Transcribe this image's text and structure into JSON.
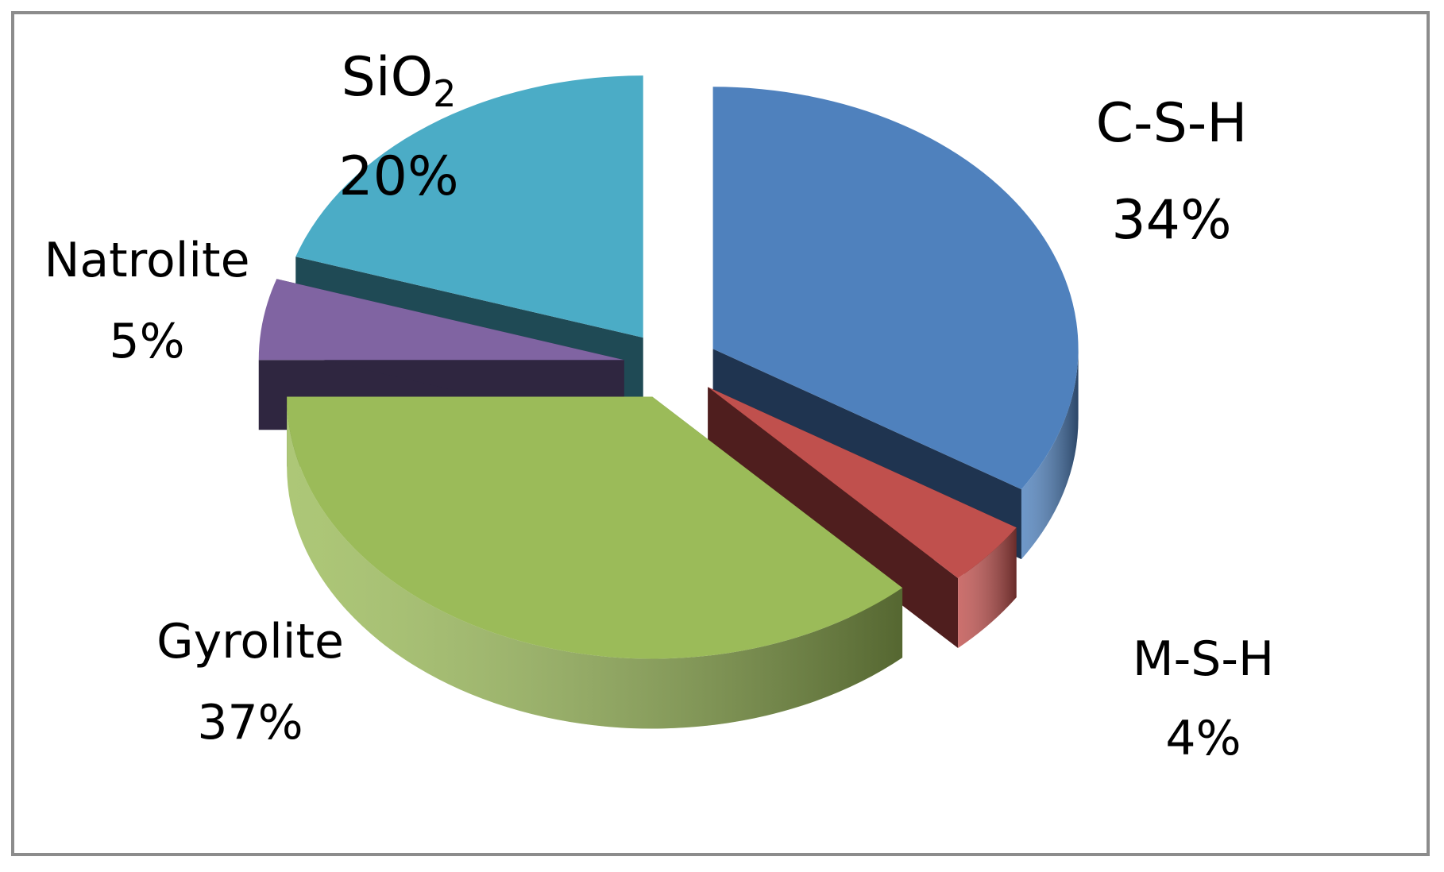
{
  "chart_data": {
    "type": "pie",
    "style": "3d-exploded",
    "title": "",
    "slices": [
      {
        "label": "C-S-H",
        "value": 34,
        "value_label": "34%",
        "color": "#4f81bd",
        "side_color": "#1f3450"
      },
      {
        "label": "M-S-H",
        "value": 4,
        "value_label": "4%",
        "color": "#c0504d",
        "side_color": "#4f1e1e"
      },
      {
        "label": "Gyrolite",
        "value": 37,
        "value_label": "37%",
        "color": "#9bbb59",
        "side_color": "#4f6a22"
      },
      {
        "label": "Natrolite",
        "value": 5,
        "value_label": "5%",
        "color": "#8064a2",
        "side_color": "#2f2640"
      },
      {
        "label": "SiO2",
        "label_main": "SiO",
        "label_sub": "2",
        "value": 20,
        "value_label": "20%",
        "color": "#4bacc6",
        "side_color": "#1f4a55"
      }
    ],
    "legend": "none",
    "data_labels": "outside"
  }
}
